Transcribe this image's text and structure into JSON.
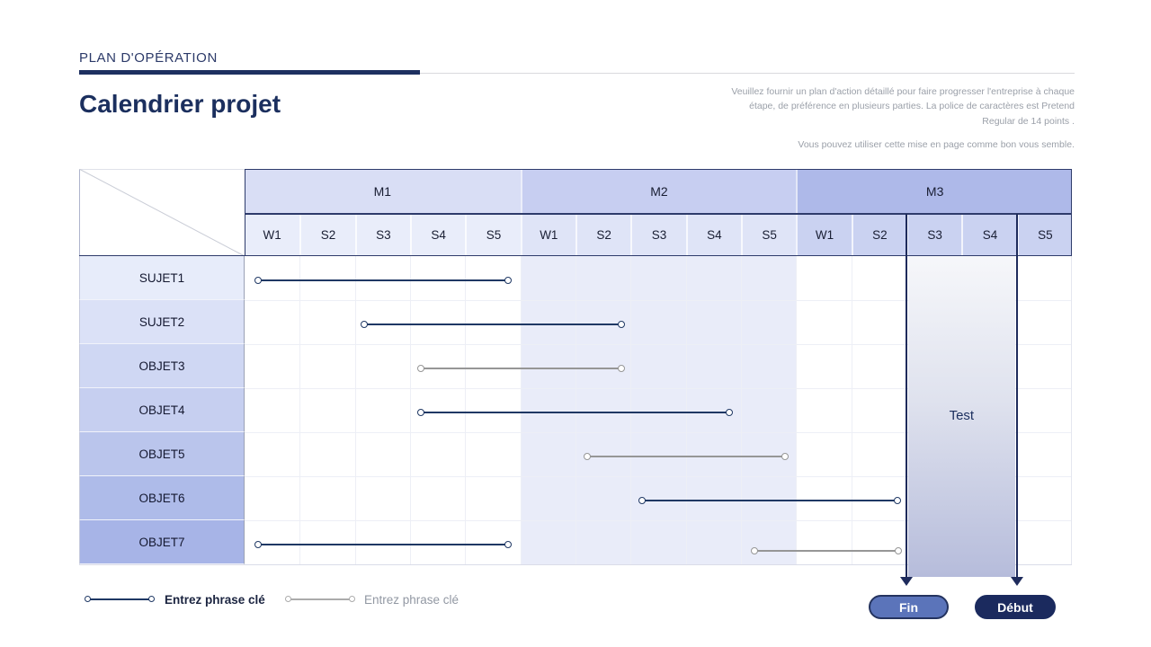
{
  "header": {
    "kicker": "PLAN D'OPÉRATION",
    "title": "Calendrier projet",
    "description_p1": "Veuillez fournir un plan d'action détaillé pour faire progresser l'entreprise à chaque étape, de préférence en plusieurs parties. La police de caractères est Pretend Regular de 14 points .",
    "description_p2": "Vous pouvez utiliser cette mise en page comme bon vous semble."
  },
  "colors": {
    "primary": "#1f3864",
    "secondary": "#969696",
    "accent_dark": "#1b2a5e",
    "accent_light": "#5b74ba",
    "month_header_bgs": [
      "#d9def5",
      "#c7cef1",
      "#aeb9e9"
    ],
    "week_header_bgs": [
      "#e9edfa",
      "#dfe4f7",
      "#cad2f1"
    ],
    "row_label_bgs": [
      "#e7ecfa",
      "#dbe1f7",
      "#cfd7f3",
      "#c6cff0",
      "#bac5ec",
      "#aebbe9",
      "#a7b4e7"
    ],
    "m2_body_tint": "#e9ecf9"
  },
  "chart_data": {
    "type": "gantt",
    "months": [
      {
        "label": "M1",
        "weeks": [
          "W1",
          "S2",
          "S3",
          "S4",
          "S5"
        ]
      },
      {
        "label": "M2",
        "weeks": [
          "W1",
          "S2",
          "S3",
          "S4",
          "S5"
        ]
      },
      {
        "label": "M3",
        "weeks": [
          "W1",
          "S2",
          "S3",
          "S4",
          "S5"
        ]
      }
    ],
    "rows": [
      {
        "label": "SUJET1",
        "bars": [
          {
            "series": "primary",
            "start_week": 0.25,
            "end_week": 4.77
          }
        ]
      },
      {
        "label": "SUJET2",
        "bars": [
          {
            "series": "primary",
            "start_week": 2.17,
            "end_week": 6.83
          }
        ]
      },
      {
        "label": "OBJET3",
        "bars": [
          {
            "series": "secondary",
            "start_week": 3.2,
            "end_week": 6.83
          }
        ]
      },
      {
        "label": "OBJET4",
        "bars": [
          {
            "series": "primary",
            "start_week": 3.2,
            "end_week": 8.79
          }
        ]
      },
      {
        "label": "OBJET5",
        "bars": [
          {
            "series": "secondary",
            "start_week": 6.21,
            "end_week": 9.8
          }
        ]
      },
      {
        "label": "OBJET6",
        "bars": [
          {
            "series": "primary",
            "start_week": 7.2,
            "end_week": 11.83
          }
        ]
      },
      {
        "label": "OBJET7",
        "bars": [
          {
            "series": "primary",
            "start_week": 0.25,
            "end_week": 4.77
          },
          {
            "series": "secondary",
            "start_week": 9.24,
            "end_week": 11.85
          }
        ]
      }
    ],
    "highlight": {
      "label": "Test",
      "start_week": 12,
      "end_week": 14
    }
  },
  "legend": [
    {
      "label": "Entrez phrase clé",
      "series": "primary"
    },
    {
      "label": "Entrez phrase clé",
      "series": "secondary"
    }
  ],
  "buttons": {
    "fin": "Fin",
    "debut": "Début"
  }
}
